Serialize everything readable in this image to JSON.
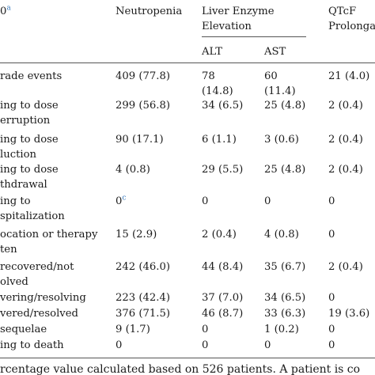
{
  "header": {
    "col0": "0",
    "col0_sup": "a",
    "neutropenia": "Neutropenia",
    "liver": "Liver Enzyme",
    "liver2": "Elevation",
    "qtcf": "QTcF",
    "qtcf2": "Prolonga",
    "alt": "ALT",
    "ast": "AST"
  },
  "rows": [
    {
      "label": [
        "rade events"
      ],
      "neut": [
        "409 (77.8)"
      ],
      "alt": [
        "78",
        "(14.8)"
      ],
      "ast": [
        "60",
        "(11.4)"
      ],
      "qtcf": [
        "21 (4.0)"
      ]
    },
    {
      "label": [
        "ing to dose",
        "erruption"
      ],
      "neut": [
        "299 (56.8)"
      ],
      "alt": [
        "34 (6.5)"
      ],
      "ast": [
        "25 (4.8)"
      ],
      "qtcf": [
        "2 (0.4)"
      ]
    },
    {
      "label": [
        "ing to dose",
        "luction"
      ],
      "neut": [
        "90 (17.1)"
      ],
      "alt": [
        "6 (1.1)"
      ],
      "ast": [
        "3 (0.6)"
      ],
      "qtcf": [
        "2 (0.4)"
      ]
    },
    {
      "label": [
        "ing to dose",
        "thdrawal"
      ],
      "neut": [
        "4 (0.8)"
      ],
      "alt": [
        "29 (5.5)"
      ],
      "ast": [
        "25 (4.8)"
      ],
      "qtcf": [
        "2 (0.4)"
      ]
    },
    {
      "label": [
        "ing to",
        "spitalization"
      ],
      "neut": [
        "0"
      ],
      "neut_sup": "c",
      "alt": [
        "0"
      ],
      "ast": [
        "0"
      ],
      "qtcf": [
        "0"
      ]
    },
    {
      "label": [
        "ocation or therapy",
        "ten"
      ],
      "neut": [
        "15 (2.9)"
      ],
      "alt": [
        "2 (0.4)"
      ],
      "ast": [
        "4 (0.8)"
      ],
      "qtcf": [
        "0"
      ]
    },
    {
      "label": [
        "recovered/not",
        "olved"
      ],
      "neut": [
        "242 (46.0)"
      ],
      "alt": [
        "44 (8.4)"
      ],
      "ast": [
        "35 (6.7)"
      ],
      "qtcf": [
        "2 (0.4)"
      ]
    },
    {
      "label": [
        "vering/resolving"
      ],
      "neut": [
        "223 (42.4)"
      ],
      "alt": [
        "37 (7.0)"
      ],
      "ast": [
        "34 (6.5)"
      ],
      "qtcf": [
        "0"
      ]
    },
    {
      "label": [
        "vered/resolved"
      ],
      "neut": [
        "376 (71.5)"
      ],
      "alt": [
        "46 (8.7)"
      ],
      "ast": [
        "33 (6.3)"
      ],
      "qtcf": [
        "19 (3.6)"
      ]
    },
    {
      "label": [
        "sequelae"
      ],
      "neut": [
        "9 (1.7)"
      ],
      "alt": [
        "0"
      ],
      "ast": [
        "1 (0.2)"
      ],
      "qtcf": [
        "0"
      ]
    },
    {
      "label": [
        "ing to death"
      ],
      "neut": [
        "0"
      ],
      "alt": [
        "0"
      ],
      "ast": [
        "0"
      ],
      "qtcf": [
        "0"
      ]
    }
  ],
  "footer": "rcentage value calculated based on 526 patients. A patient is co"
}
